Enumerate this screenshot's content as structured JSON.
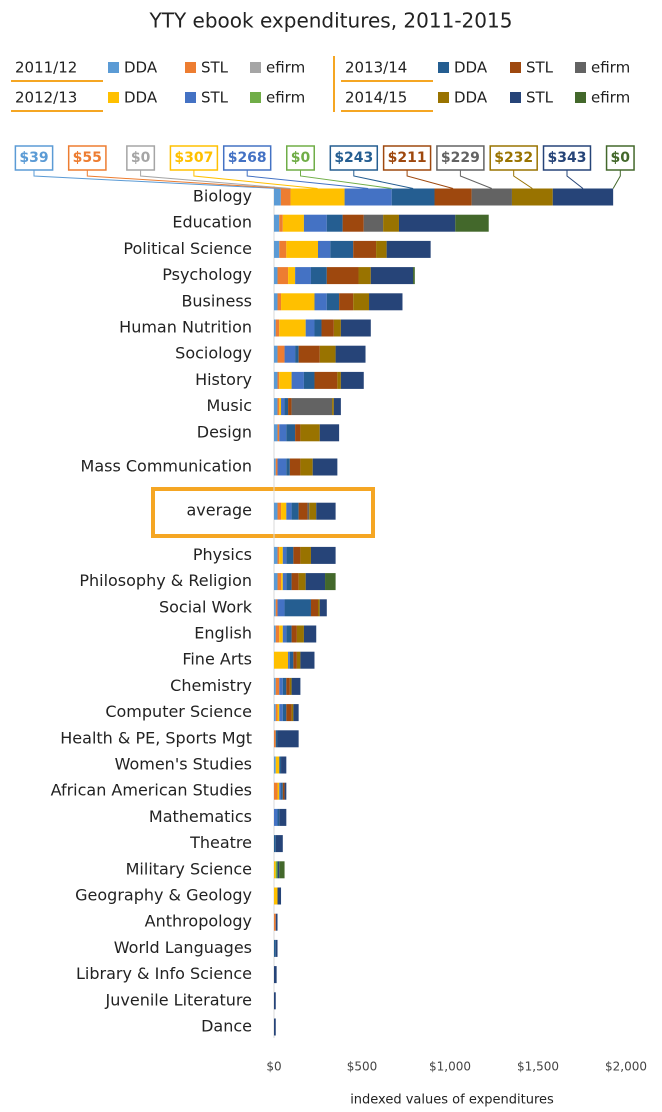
{
  "chart_data": {
    "type": "stacked-barh",
    "title": "YTY ebook expenditures, 2011-2015",
    "x_label": "indexed values of expenditures",
    "legend_groups": [
      "2011/12",
      "2012/13",
      "2013/14",
      "2014/15"
    ],
    "categories": [
      "Biology",
      "Education",
      "Political Science",
      "Psychology",
      "Business",
      "Human Nutrition",
      "Sociology",
      "History",
      "Music",
      "Design",
      "Mass Communication",
      "average",
      "Physics",
      "Philosophy & Religion",
      "Social Work",
      "English",
      "Fine Arts",
      "Chemistry",
      "Computer Science",
      "Health & PE, Sports Mgt",
      "Women's Studies",
      "African American Studies",
      "Mathematics",
      "Theatre",
      "Military Science",
      "Geography & Geology",
      "Anthropology",
      "World Languages",
      "Library & Info Science",
      "Juvenile Literature",
      "Dance"
    ],
    "xlim": [
      0,
      2000
    ],
    "xticks": [
      {
        "value": 0,
        "label": "$0"
      },
      {
        "value": 500,
        "label": "$500"
      },
      {
        "value": 1000,
        "label": "$1,000"
      },
      {
        "value": 1500,
        "label": "$1,500"
      },
      {
        "value": 2000,
        "label": "$2,000"
      }
    ],
    "grid": false,
    "series": [
      {
        "name": "DDA",
        "color": "#5b9bd5",
        "values": [
          39,
          30,
          30,
          20,
          20,
          10,
          20,
          20,
          20,
          20,
          10,
          20,
          20,
          20,
          10,
          10,
          0,
          10,
          10,
          0,
          10,
          0,
          0,
          0,
          0,
          0,
          0,
          0,
          0,
          0,
          0
        ],
        "value_labels": [
          "$39",
          null,
          null,
          null,
          null,
          null,
          null,
          null,
          null,
          null,
          null,
          null,
          null,
          null,
          null,
          null,
          null,
          null,
          null,
          null,
          null,
          null,
          null,
          null,
          null,
          null,
          null,
          null,
          null,
          null,
          null
        ]
      },
      {
        "name": "STL",
        "color": "#ed7d31",
        "values": [
          55,
          20,
          40,
          60,
          20,
          20,
          40,
          10,
          10,
          10,
          10,
          20,
          10,
          20,
          10,
          20,
          0,
          20,
          10,
          10,
          0,
          20,
          0,
          0,
          0,
          0,
          10,
          0,
          0,
          0,
          0
        ],
        "value_labels": [
          "$55",
          null,
          null,
          null,
          null,
          null,
          null,
          null,
          null,
          null,
          null,
          null,
          null,
          null,
          null,
          null,
          null,
          null,
          null,
          null,
          null,
          null,
          null,
          null,
          null,
          null,
          null,
          null,
          null,
          null,
          null
        ]
      },
      {
        "name": "efirm",
        "color": "#a5a5a5",
        "values": [
          0,
          0,
          0,
          0,
          0,
          0,
          0,
          0,
          0,
          0,
          0,
          0,
          0,
          0,
          0,
          0,
          0,
          0,
          0,
          0,
          0,
          0,
          0,
          0,
          0,
          0,
          0,
          0,
          0,
          0,
          0
        ],
        "value_labels": [
          "$0",
          null,
          null,
          null,
          null,
          null,
          null,
          null,
          null,
          null,
          null,
          null,
          null,
          null,
          null,
          null,
          null,
          null,
          null,
          null,
          null,
          null,
          null,
          null,
          null,
          null,
          null,
          null,
          null,
          null,
          null
        ]
      },
      {
        "name": "DDA",
        "color": "#ffc000",
        "values": [
          307,
          120,
          180,
          40,
          190,
          150,
          0,
          70,
          10,
          0,
          0,
          30,
          20,
          10,
          0,
          20,
          80,
          0,
          10,
          0,
          20,
          10,
          0,
          0,
          10,
          20,
          0,
          0,
          0,
          0,
          0
        ],
        "value_labels": [
          "$307",
          null,
          null,
          null,
          null,
          null,
          null,
          null,
          null,
          null,
          null,
          null,
          null,
          null,
          null,
          null,
          null,
          null,
          null,
          null,
          null,
          null,
          null,
          null,
          null,
          null,
          null,
          null,
          null,
          null,
          null
        ]
      },
      {
        "name": "STL",
        "color": "#4472c4",
        "values": [
          268,
          130,
          70,
          90,
          70,
          50,
          60,
          70,
          20,
          40,
          50,
          30,
          20,
          20,
          40,
          20,
          10,
          20,
          20,
          0,
          0,
          10,
          20,
          0,
          0,
          0,
          0,
          0,
          0,
          0,
          0
        ],
        "value_labels": [
          "$268",
          null,
          null,
          null,
          null,
          null,
          null,
          null,
          null,
          null,
          null,
          null,
          null,
          null,
          null,
          null,
          null,
          null,
          null,
          null,
          null,
          null,
          null,
          null,
          null,
          null,
          null,
          null,
          null,
          null,
          null
        ]
      },
      {
        "name": "efirm",
        "color": "#70ad47",
        "values": [
          0,
          0,
          0,
          0,
          0,
          0,
          0,
          0,
          0,
          0,
          0,
          0,
          0,
          0,
          0,
          0,
          0,
          0,
          0,
          0,
          0,
          0,
          0,
          0,
          10,
          0,
          0,
          0,
          0,
          0,
          0
        ],
        "value_labels": [
          "$0",
          null,
          null,
          null,
          null,
          null,
          null,
          null,
          null,
          null,
          null,
          null,
          null,
          null,
          null,
          null,
          null,
          null,
          null,
          null,
          null,
          null,
          null,
          null,
          null,
          null,
          null,
          null,
          null,
          null,
          null
        ]
      },
      {
        "name": "DDA",
        "color": "#255e91",
        "values": [
          243,
          90,
          130,
          90,
          70,
          40,
          20,
          60,
          20,
          50,
          20,
          40,
          40,
          30,
          150,
          30,
          20,
          20,
          20,
          10,
          10,
          10,
          10,
          10,
          0,
          0,
          0,
          10,
          0,
          0,
          0
        ],
        "value_labels": [
          "$243",
          null,
          null,
          null,
          null,
          null,
          null,
          null,
          null,
          null,
          null,
          null,
          null,
          null,
          null,
          null,
          null,
          null,
          null,
          null,
          null,
          null,
          null,
          null,
          null,
          null,
          null,
          null,
          null,
          null,
          null
        ]
      },
      {
        "name": "STL",
        "color": "#9e480e",
        "values": [
          211,
          120,
          130,
          180,
          80,
          70,
          120,
          130,
          20,
          30,
          60,
          50,
          40,
          40,
          40,
          30,
          20,
          20,
          30,
          0,
          0,
          10,
          0,
          0,
          0,
          0,
          0,
          0,
          0,
          0,
          0
        ],
        "value_labels": [
          "$211",
          null,
          null,
          null,
          null,
          null,
          null,
          null,
          null,
          null,
          null,
          null,
          null,
          null,
          null,
          null,
          null,
          null,
          null,
          null,
          null,
          null,
          null,
          null,
          null,
          null,
          null,
          null,
          null,
          null,
          null
        ]
      },
      {
        "name": "efirm",
        "color": "#636363",
        "values": [
          229,
          110,
          0,
          0,
          0,
          0,
          0,
          0,
          230,
          0,
          0,
          10,
          0,
          0,
          0,
          0,
          0,
          0,
          0,
          0,
          0,
          0,
          0,
          0,
          0,
          0,
          0,
          0,
          0,
          0,
          0
        ],
        "value_labels": [
          "$229",
          null,
          null,
          null,
          null,
          null,
          null,
          null,
          null,
          null,
          null,
          null,
          null,
          null,
          null,
          null,
          null,
          null,
          null,
          null,
          null,
          null,
          null,
          null,
          null,
          null,
          null,
          null,
          null,
          null,
          null
        ]
      },
      {
        "name": "DDA",
        "color": "#997300",
        "values": [
          232,
          90,
          60,
          70,
          90,
          40,
          90,
          20,
          10,
          110,
          70,
          40,
          60,
          40,
          10,
          40,
          20,
          10,
          10,
          0,
          0,
          0,
          0,
          0,
          0,
          0,
          0,
          0,
          0,
          0,
          0
        ],
        "value_labels": [
          "$232",
          null,
          null,
          null,
          null,
          null,
          null,
          null,
          null,
          null,
          null,
          null,
          null,
          null,
          null,
          null,
          null,
          null,
          null,
          null,
          null,
          null,
          null,
          null,
          null,
          null,
          null,
          null,
          null,
          null,
          null
        ]
      },
      {
        "name": "STL",
        "color": "#264478",
        "values": [
          343,
          320,
          250,
          240,
          190,
          170,
          170,
          130,
          40,
          110,
          140,
          110,
          140,
          110,
          40,
          70,
          80,
          50,
          30,
          120,
          30,
          10,
          40,
          40,
          10,
          20,
          10,
          10,
          15,
          10,
          10
        ],
        "value_labels": [
          "$343",
          null,
          null,
          null,
          null,
          null,
          null,
          null,
          null,
          null,
          null,
          null,
          null,
          null,
          null,
          null,
          null,
          null,
          null,
          null,
          null,
          null,
          null,
          null,
          null,
          null,
          null,
          null,
          null,
          null,
          null
        ]
      },
      {
        "name": "efirm",
        "color": "#43682b",
        "values": [
          0,
          190,
          0,
          10,
          0,
          0,
          0,
          0,
          0,
          0,
          0,
          0,
          0,
          60,
          0,
          0,
          0,
          0,
          0,
          0,
          0,
          0,
          0,
          0,
          30,
          0,
          0,
          0,
          0,
          0,
          0
        ],
        "value_labels": [
          "$0",
          null,
          null,
          null,
          null,
          null,
          null,
          null,
          null,
          null,
          null,
          null,
          null,
          null,
          null,
          null,
          null,
          null,
          null,
          null,
          null,
          null,
          null,
          null,
          null,
          null,
          null,
          null,
          null,
          null,
          null
        ]
      }
    ]
  }
}
